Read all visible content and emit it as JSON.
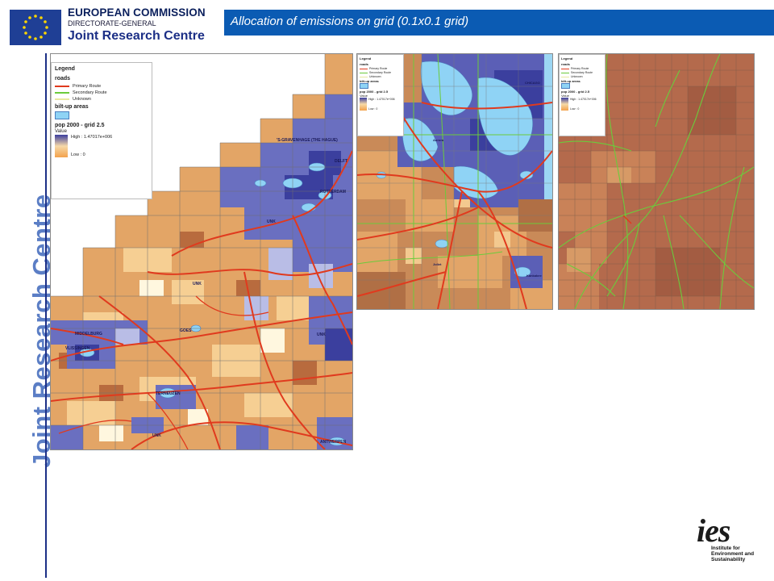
{
  "header": {
    "org_line1": "EUROPEAN COMMISSION",
    "org_line2": "DIRECTORATE-GENERAL",
    "org_line3": "Joint Research Centre",
    "title": "Allocation of emissions on grid (0.1x0.1 grid)",
    "title_bar_color": "#0b5bb3"
  },
  "side_brand": "Joint Research Centre",
  "legend": {
    "title": "Legend",
    "roads_heading": "roads",
    "primary": "Primary Route",
    "secondary": "Secondary Route",
    "unknown": "Unknown",
    "builtup_heading": "bilt-up areas",
    "pop_heading": "pop 2000 - grid 2.5",
    "value_heading": "Value",
    "high": "High : 1.47017e+006",
    "low": "Low : 0",
    "colors": {
      "primary": "#e03a1e",
      "secondary": "#6bcb3c",
      "unknown": "#e8e8a0",
      "high": "#3b3f9e",
      "low": "#f3a24c"
    }
  },
  "map1_labels": [
    "'S-GRAVENHAGE (THE HAGUE)",
    "DELFT",
    "ROTTERDAM",
    "GOES",
    "MIDDELBURG",
    "VLISSINGEN",
    "TERNEUZEN",
    "ANTWERPEN",
    "UNK"
  ],
  "map2_labels": [
    "CHICAGO",
    "Joliet",
    "Aurora",
    "Kankakee"
  ],
  "logo": {
    "mark": "ies",
    "line1": "Institute for",
    "line2": "Environment and",
    "line3": "Sustainability"
  }
}
